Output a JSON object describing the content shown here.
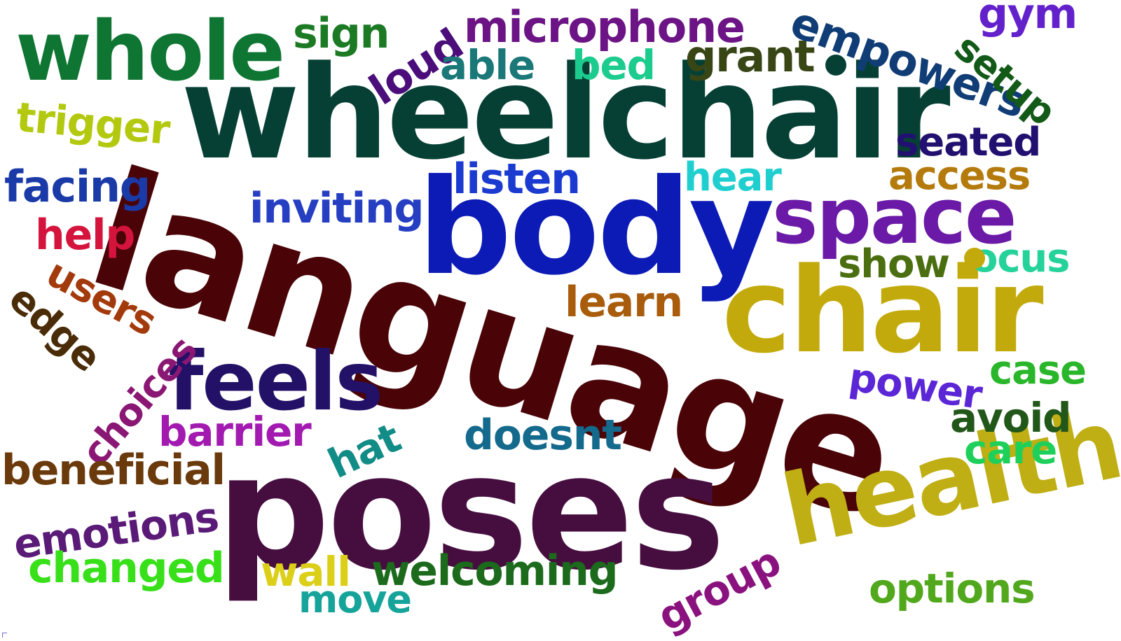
{
  "word_cloud": {
    "words": [
      {
        "text": "language",
        "color": "#4a0408"
      },
      {
        "text": "poses",
        "color": "#460d3f"
      },
      {
        "text": "wheelchair",
        "color": "#064035"
      },
      {
        "text": "body",
        "color": "#0c1bb5"
      },
      {
        "text": "chair",
        "color": "#c3aa0c"
      },
      {
        "text": "health",
        "color": "#bfae14"
      },
      {
        "text": "space",
        "color": "#6a1aa6"
      },
      {
        "text": "whole",
        "color": "#0e7532"
      },
      {
        "text": "feels",
        "color": "#231067"
      },
      {
        "text": "microphone",
        "color": "#6c1485"
      },
      {
        "text": "sign",
        "color": "#1c7a25"
      },
      {
        "text": "loud",
        "color": "#4a0d7a"
      },
      {
        "text": "able",
        "color": "#1b7878"
      },
      {
        "text": "bed",
        "color": "#1ccc8f"
      },
      {
        "text": "grant",
        "color": "#384616"
      },
      {
        "text": "empowers",
        "color": "#103d76"
      },
      {
        "text": "gym",
        "color": "#6321cc"
      },
      {
        "text": "setup",
        "color": "#135a18"
      },
      {
        "text": "trigger",
        "color": "#b3c90f"
      },
      {
        "text": "facing",
        "color": "#1a3aa8"
      },
      {
        "text": "help",
        "color": "#d4143c"
      },
      {
        "text": "inviting",
        "color": "#263ec2"
      },
      {
        "text": "listen",
        "color": "#1b3ad0"
      },
      {
        "text": "hear",
        "color": "#1fcfcf"
      },
      {
        "text": "seated",
        "color": "#221070"
      },
      {
        "text": "access",
        "color": "#b47a0c"
      },
      {
        "text": "show",
        "color": "#4a6e10"
      },
      {
        "text": "ocus",
        "color": "#25d39a"
      },
      {
        "text": "users",
        "color": "#a33a0c"
      },
      {
        "text": "edge",
        "color": "#4a2c08"
      },
      {
        "text": "choices",
        "color": "#8a1773"
      },
      {
        "text": "learn",
        "color": "#a85c0c"
      },
      {
        "text": "case",
        "color": "#29b62a"
      },
      {
        "text": "power",
        "color": "#5b26d6"
      },
      {
        "text": "avoid",
        "color": "#22571a"
      },
      {
        "text": "care",
        "color": "#1ed05a"
      },
      {
        "text": "barrier",
        "color": "#a21ab0"
      },
      {
        "text": "hat",
        "color": "#128c86"
      },
      {
        "text": "doesnt",
        "color": "#146a8c"
      },
      {
        "text": "beneficial",
        "color": "#6a3a0c"
      },
      {
        "text": "emotions",
        "color": "#5a1a78"
      },
      {
        "text": "changed",
        "color": "#38e01a"
      },
      {
        "text": "wall",
        "color": "#dccf18"
      },
      {
        "text": "move",
        "color": "#16a49a"
      },
      {
        "text": "welcoming",
        "color": "#1c6a1c"
      },
      {
        "text": "group",
        "color": "#8a127e"
      },
      {
        "text": "options",
        "color": "#52a81c"
      }
    ]
  }
}
